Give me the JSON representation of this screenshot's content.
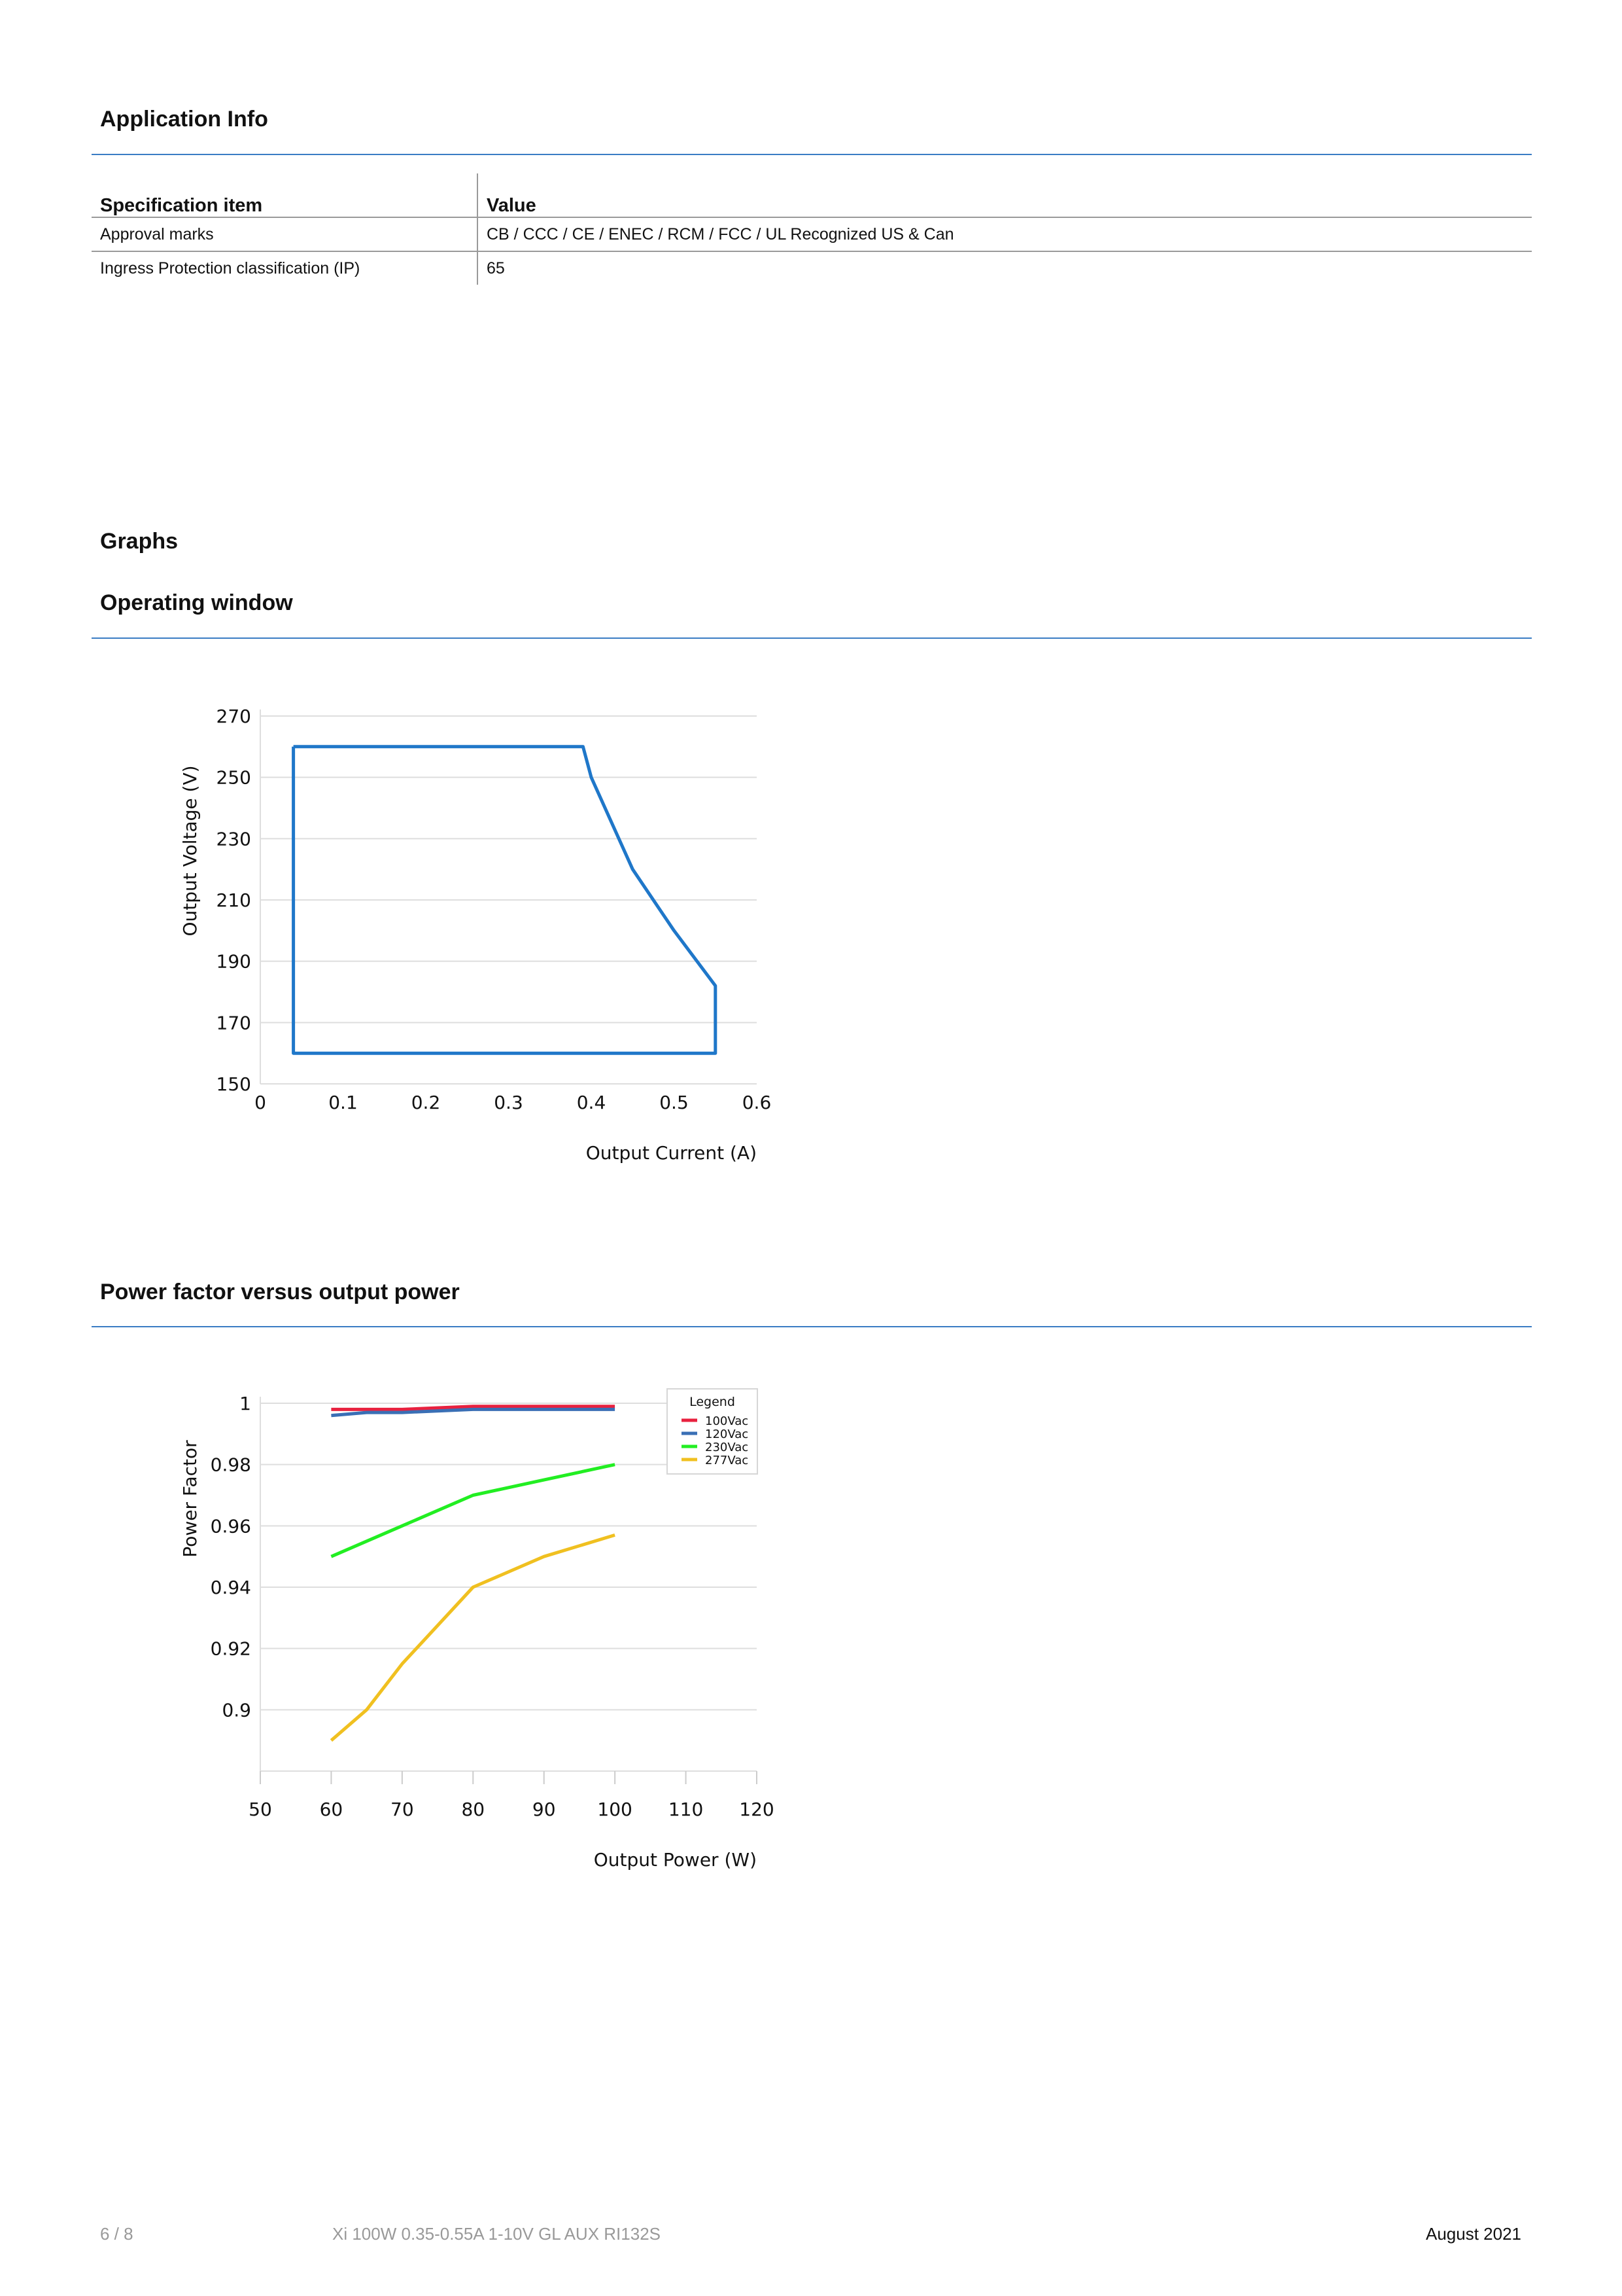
{
  "section_app": "Application Info",
  "table": {
    "headers": [
      "Specification item",
      "Value"
    ],
    "rows": [
      [
        "Approval marks",
        "CB / CCC / CE / ENEC / RCM  / FCC / UL Recognized US & Can"
      ],
      [
        "Ingress Protection classification (IP)",
        "65"
      ]
    ]
  },
  "section_graphs": "Graphs",
  "operating_window_title": "Operating window",
  "power_factor_title": "Power factor versus output power",
  "chart_data": [
    {
      "type": "line",
      "xlabel": "Output Current (A)",
      "ylabel": "Output Voltage (V)",
      "xlim": [
        0,
        0.6
      ],
      "ylim": [
        150,
        270
      ],
      "xticks": [
        "0",
        "0.1",
        "0.2",
        "0.3",
        "0.4",
        "0.5",
        "0.6"
      ],
      "yticks": [
        "150",
        "170",
        "190",
        "210",
        "230",
        "250",
        "270"
      ],
      "grid": true,
      "series": [
        {
          "color": "#1f77c9",
          "x": [
            0.04,
            0.39,
            0.4,
            0.45,
            0.5,
            0.55,
            0.55,
            0.04,
            0.04
          ],
          "y": [
            260,
            260,
            250,
            220,
            200,
            182,
            160,
            160,
            260
          ]
        }
      ]
    },
    {
      "type": "line",
      "xlabel": "Output Power (W)",
      "ylabel": "Power Factor",
      "xlim": [
        50,
        120
      ],
      "ylim": [
        0.88,
        1
      ],
      "xticks": [
        "50",
        "60",
        "70",
        "80",
        "90",
        "100",
        "110",
        "120"
      ],
      "yticks": [
        "0.9",
        "0.92",
        "0.94",
        "0.96",
        "0.98",
        "1"
      ],
      "grid": true,
      "legend": {
        "title": "Legend",
        "placement": "top-right"
      },
      "series": [
        {
          "name": "100Vac",
          "color": "#e8213f",
          "x": [
            60,
            70,
            80,
            90,
            100
          ],
          "y": [
            0.998,
            0.998,
            0.999,
            0.999,
            0.999
          ]
        },
        {
          "name": "120Vac",
          "color": "#3a6fb5",
          "x": [
            60,
            65,
            70,
            80,
            90,
            100
          ],
          "y": [
            0.996,
            0.997,
            0.997,
            0.998,
            0.998,
            0.998
          ]
        },
        {
          "name": "230Vac",
          "color": "#22ee22",
          "x": [
            60,
            70,
            80,
            90,
            100
          ],
          "y": [
            0.95,
            0.96,
            0.97,
            0.975,
            0.98
          ]
        },
        {
          "name": "277Vac",
          "color": "#f0c020",
          "x": [
            60,
            65,
            70,
            80,
            90,
            100
          ],
          "y": [
            0.89,
            0.9,
            0.915,
            0.94,
            0.95,
            0.957
          ]
        }
      ]
    }
  ],
  "footer": {
    "page": "6 / 8",
    "product": "Xi 100W 0.35-0.55A 1-10V GL AUX RI132S",
    "date": "August 2021"
  }
}
